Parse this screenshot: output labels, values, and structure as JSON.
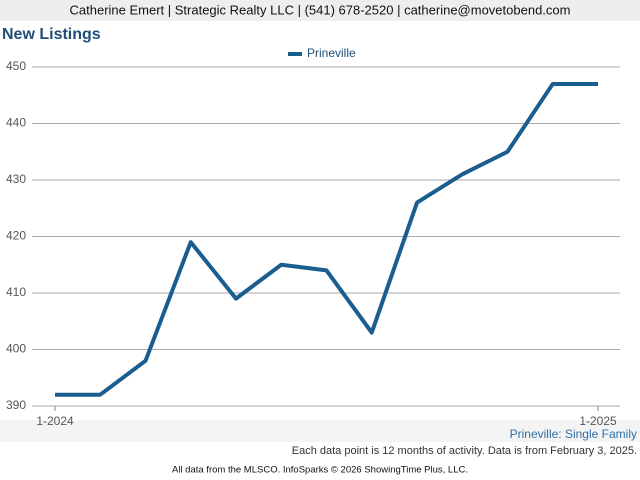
{
  "header": {
    "contact": "Catherine Emert | Strategic Realty LLC | (541) 678-2520 | catherine@movetobend.com"
  },
  "chart_data": {
    "type": "line",
    "title": "New Listings",
    "categories": [
      "1-2024",
      null,
      null,
      null,
      null,
      null,
      null,
      null,
      null,
      null,
      null,
      null,
      "1-2025"
    ],
    "series": [
      {
        "name": "Prineville",
        "color": "#1a5d8f",
        "values": [
          392,
          392,
          398,
          419,
          409,
          415,
          414,
          403,
          426,
          431,
          435,
          447,
          447
        ]
      }
    ],
    "ylim": [
      390,
      450
    ],
    "yticks": [
      390,
      400,
      410,
      420,
      430,
      440,
      450
    ],
    "grid": true,
    "subtitle": "Prineville: Single Family"
  },
  "footer": {
    "note": "Each data point is 12 months of activity. Data is from February 3, 2025.",
    "source": "All data from the MLSCO. InfoSparks © 2026 ShowingTime Plus, LLC."
  }
}
